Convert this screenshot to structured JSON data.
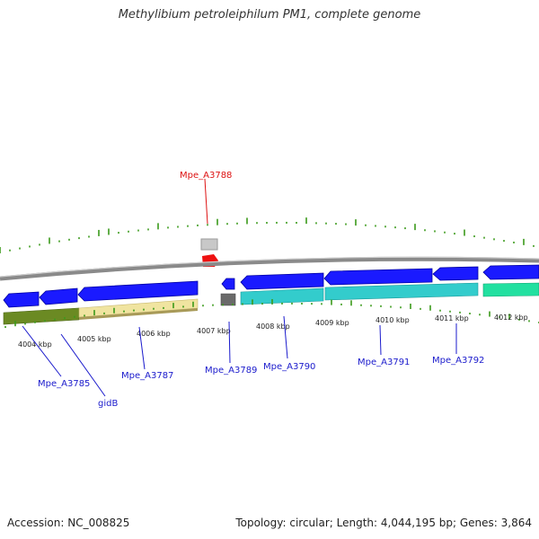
{
  "title": "Methylibium petroleiphilum PM1, complete genome",
  "footer": {
    "accession": "Accession: NC_008825",
    "summary": "Topology: circular; Length: 4,044,195 bp; Genes: 3,864"
  },
  "colors": {
    "backbone": "#8a8a8a",
    "gene_blue": "#1a1aff",
    "gene_blue_dark": "#0000b0",
    "gc_tick": "#3a9a1a",
    "label_blue": "#1a1acc",
    "label_red": "#dd1111",
    "cyan_track": "#33cccc",
    "green_track": "#22e0a0",
    "olive_track": "#6b8a23",
    "khaki_track": "#f0e4a0",
    "gray_feature": "#7a7a7a",
    "highlight_red": "#ee1111"
  },
  "scale_labels": [
    "4004 kbp",
    "4005 kbp",
    "4006 kbp",
    "4007 kbp",
    "4008 kbp",
    "4009 kbp",
    "4010 kbp",
    "4011 kbp",
    "4012 kbp"
  ],
  "gene_labels": [
    {
      "text": "Mpe_A3785",
      "color": "blue"
    },
    {
      "text": "gidB",
      "color": "blue"
    },
    {
      "text": "Mpe_A3787",
      "color": "blue"
    },
    {
      "text": "Mpe_A3788",
      "color": "red"
    },
    {
      "text": "Mpe_A3789",
      "color": "blue"
    },
    {
      "text": "Mpe_A3790",
      "color": "blue"
    },
    {
      "text": "Mpe_A3791",
      "color": "blue"
    },
    {
      "text": "Mpe_A3792",
      "color": "blue"
    }
  ]
}
